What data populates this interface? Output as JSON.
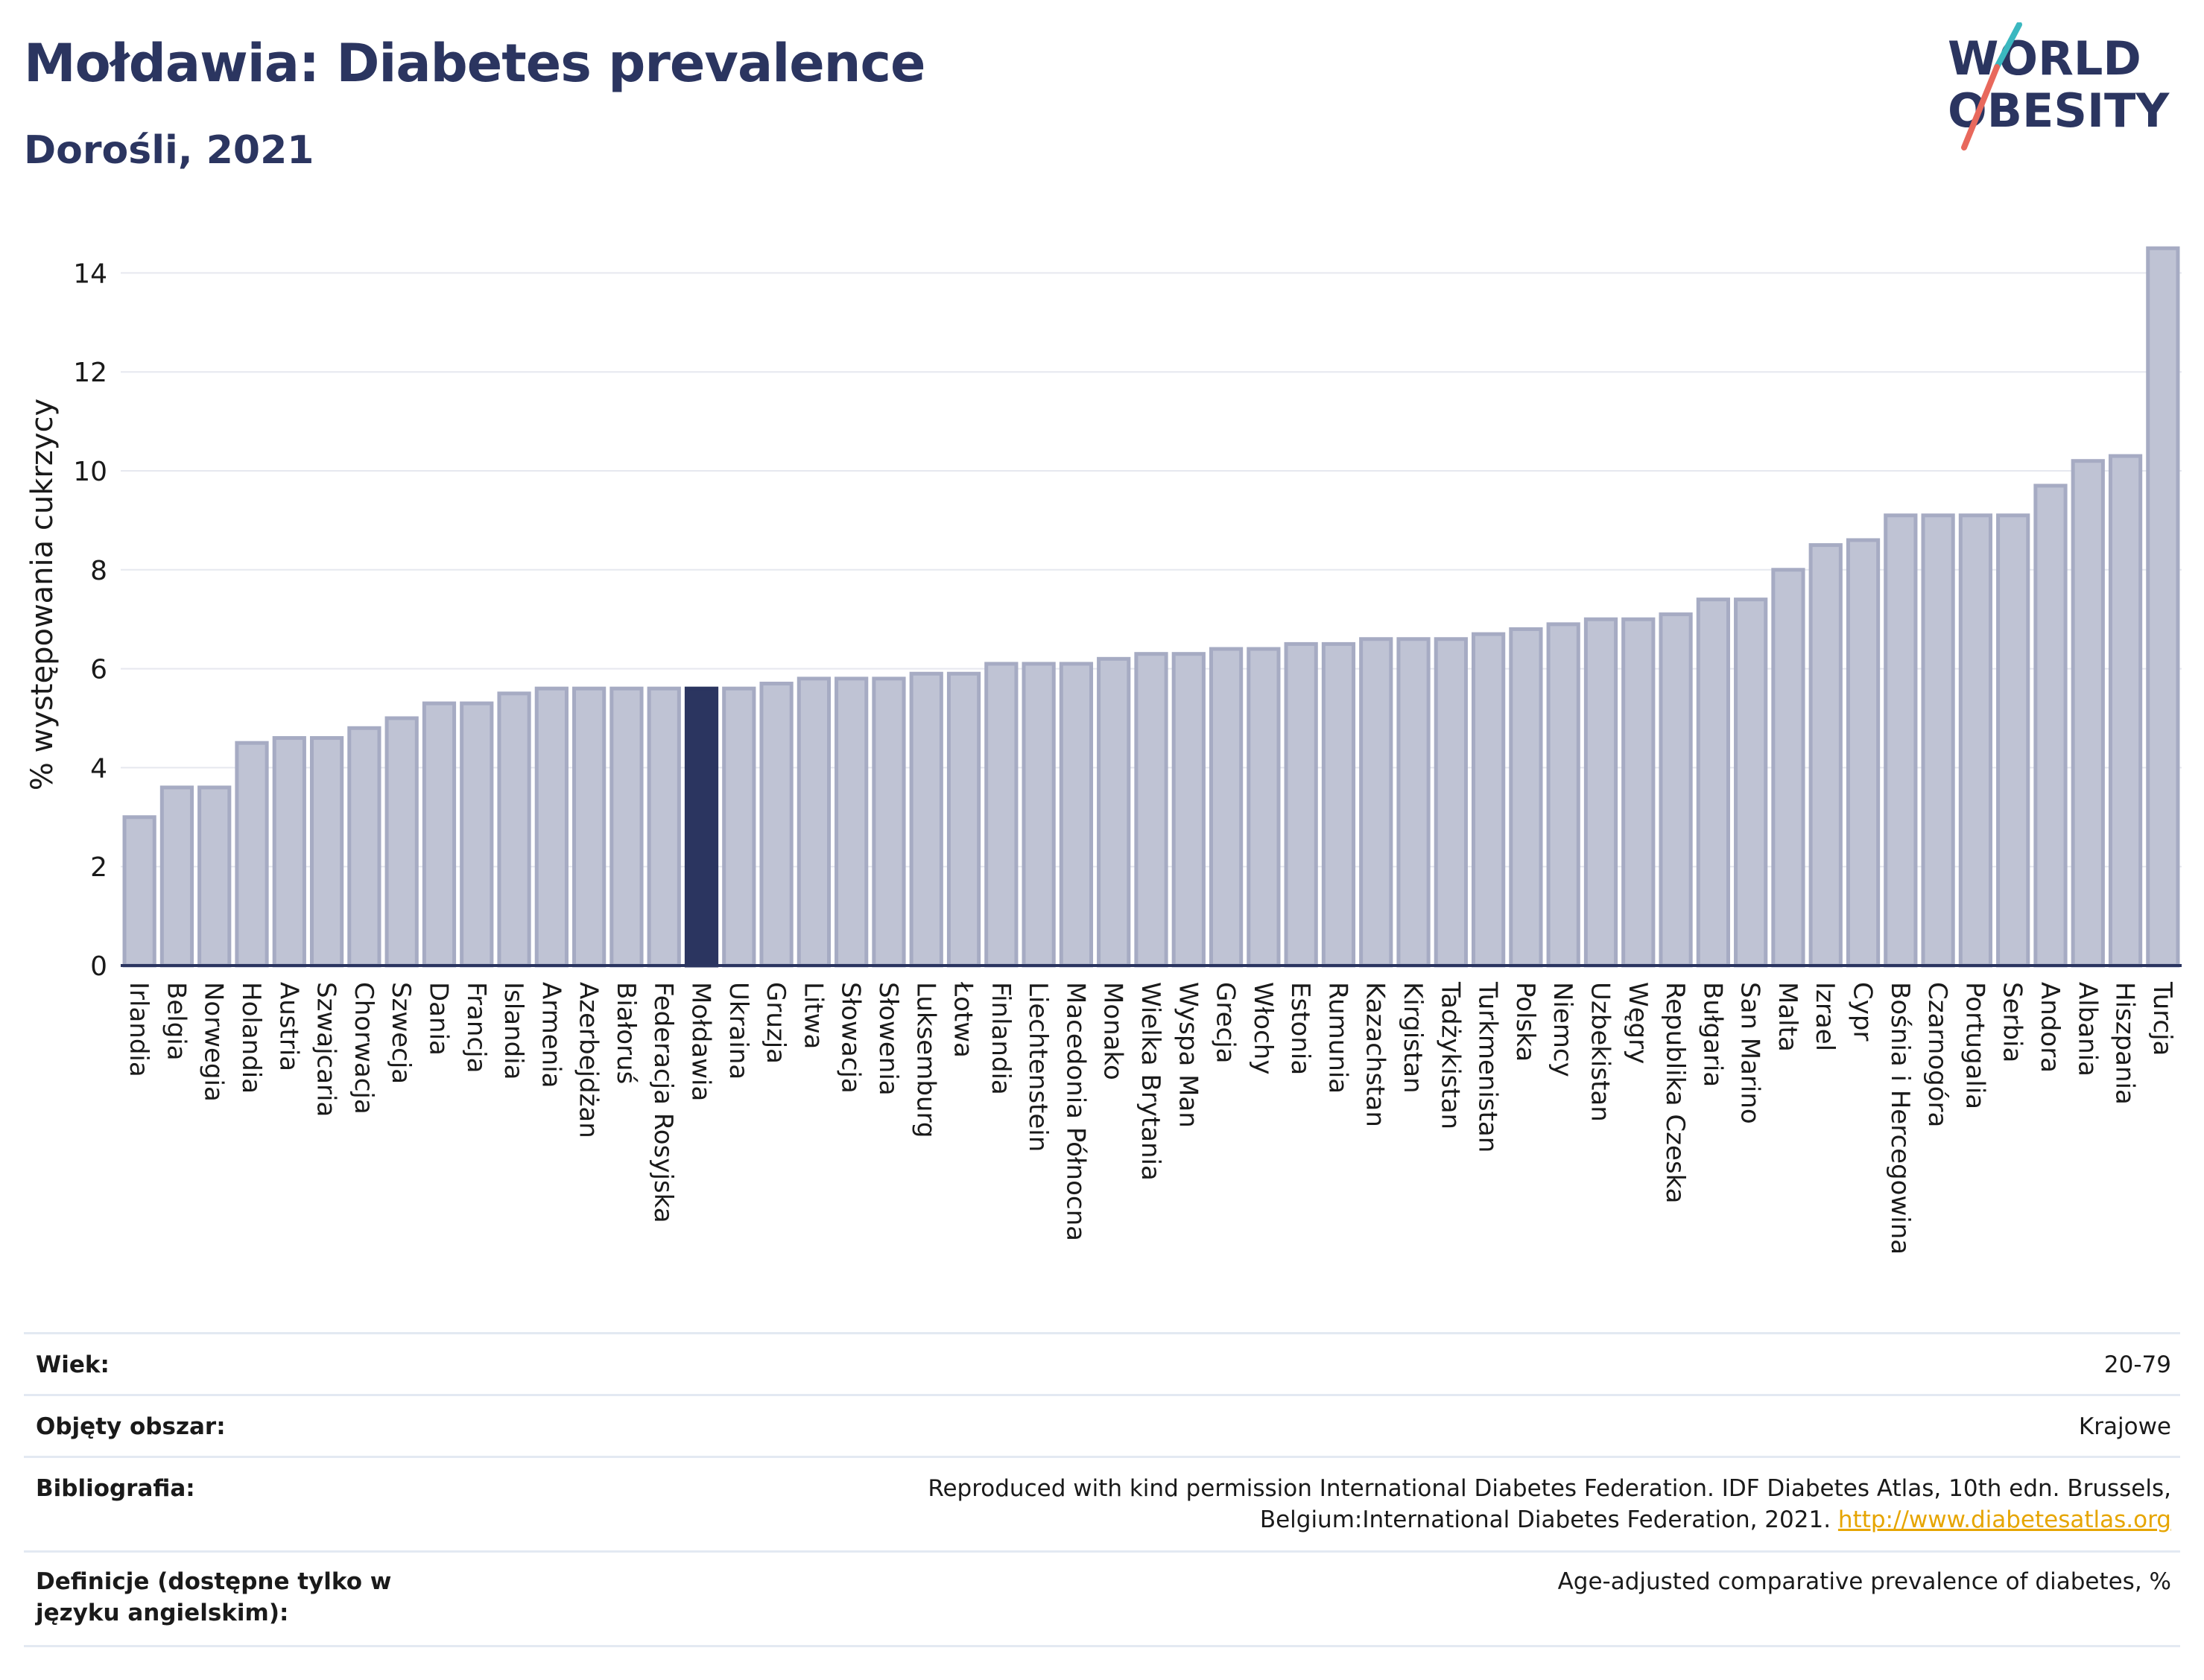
{
  "title": "Mołdawia: Diabetes prevalence",
  "subtitle": "Dorośli, 2021",
  "logo": {
    "line1": "WORLD",
    "line2": "OBESITY"
  },
  "colors": {
    "bar": "#bfc3d4",
    "bar_edge": "#a6abc3",
    "highlight": "#2b3560",
    "grid": "#e6e8ef",
    "axis": "#2b3560"
  },
  "chart_data": {
    "type": "bar",
    "ylabel": "% występowania cukrzycy",
    "ylim": [
      0,
      15
    ],
    "yticks": [
      0,
      2,
      4,
      6,
      8,
      10,
      12,
      14
    ],
    "highlight": "Mołdawia",
    "grid": true,
    "categories": [
      "Irlandia",
      "Belgia",
      "Norwegia",
      "Holandia",
      "Austria",
      "Szwajcaria",
      "Chorwacja",
      "Szwecja",
      "Dania",
      "Francja",
      "Islandia",
      "Armenia",
      "Azerbejdżan",
      "Białoruś",
      "Federacja Rosyjska",
      "Mołdawia",
      "Ukraina",
      "Gruzja",
      "Litwa",
      "Słowacja",
      "Słowenia",
      "Luksemburg",
      "Łotwa",
      "Finlandia",
      "Liechtenstein",
      "Macedonia Północna",
      "Monako",
      "Wielka Brytania",
      "Wyspa Man",
      "Grecja",
      "Włochy",
      "Estonia",
      "Rumunia",
      "Kazachstan",
      "Kirgistan",
      "Tadżykistan",
      "Turkmenistan",
      "Polska",
      "Niemcy",
      "Uzbekistan",
      "Węgry",
      "Republika Czeska",
      "Bułgaria",
      "San Marino",
      "Malta",
      "Izrael",
      "Cypr",
      "Bośnia i Hercegowina",
      "Czarnogóra",
      "Portugalia",
      "Serbia",
      "Andora",
      "Albania",
      "Hiszpania",
      "Turcja"
    ],
    "values": [
      3.0,
      3.6,
      3.6,
      4.5,
      4.6,
      4.6,
      4.8,
      5.0,
      5.3,
      5.3,
      5.5,
      5.6,
      5.6,
      5.6,
      5.6,
      5.6,
      5.6,
      5.7,
      5.8,
      5.8,
      5.8,
      5.9,
      5.9,
      6.1,
      6.1,
      6.1,
      6.2,
      6.3,
      6.3,
      6.4,
      6.4,
      6.5,
      6.5,
      6.6,
      6.6,
      6.6,
      6.7,
      6.8,
      6.9,
      7.0,
      7.0,
      7.1,
      7.4,
      7.4,
      8.0,
      8.5,
      8.6,
      9.1,
      9.1,
      9.1,
      9.1,
      9.7,
      10.2,
      10.3,
      14.5
    ]
  },
  "meta": [
    {
      "label": "Wiek:",
      "value": "20-79"
    },
    {
      "label": "Objęty obszar:",
      "value": "Krajowe"
    },
    {
      "label": "Bibliografia:",
      "value": "Reproduced with kind permission International Diabetes Federation.  IDF Diabetes Atlas, 10th edn. Brussels, Belgium:International Diabetes Federation, 2021.",
      "link": "http://www.diabetesatlas.org"
    },
    {
      "label": "Definicje (dostępne tylko w języku angielskim):",
      "value": "Age-adjusted comparative prevalence of diabetes, %"
    }
  ]
}
